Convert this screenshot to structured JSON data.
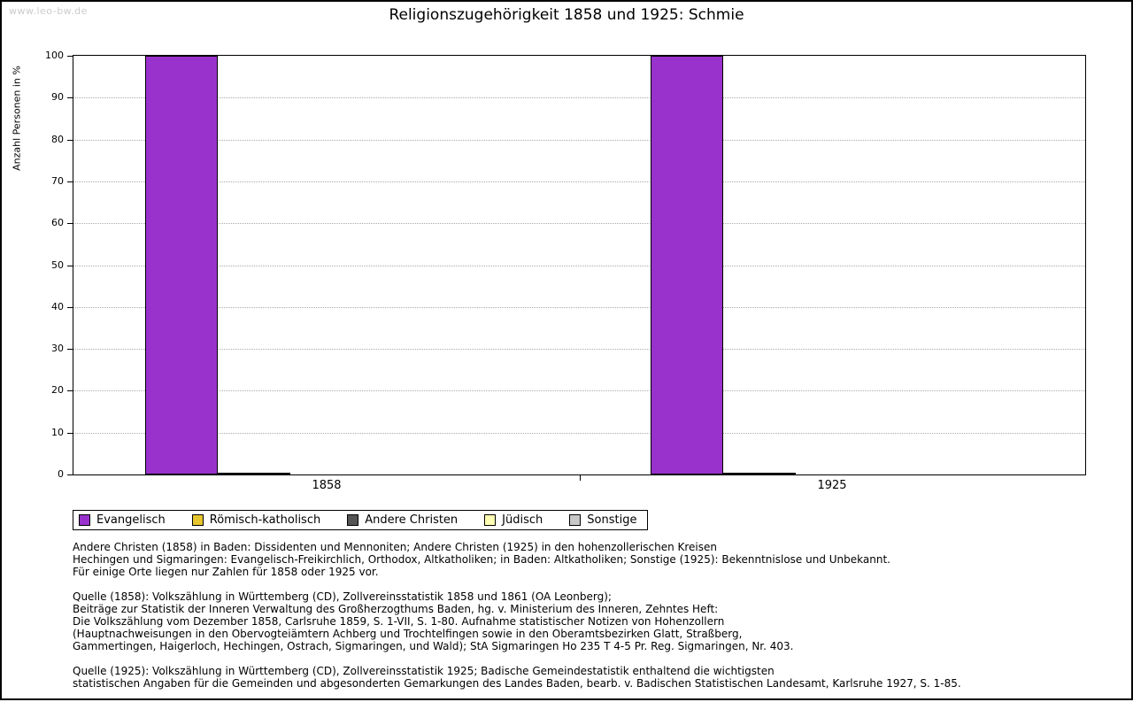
{
  "watermark": "www.leo-bw.de",
  "chart_data": {
    "type": "bar",
    "title": "Religionszugehörigkeit 1858 und 1925: Schmie",
    "ylabel": "Anzahl Personen in %",
    "xlabel": "",
    "categories": [
      "1858",
      "1925"
    ],
    "series": [
      {
        "name": "Evangelisch",
        "color": "#9932cc",
        "values": [
          100,
          100
        ]
      },
      {
        "name": "Römisch-katholisch",
        "color": "#e6c52e",
        "values": [
          0.3,
          0.3
        ]
      },
      {
        "name": "Andere Christen",
        "color": "#555555",
        "values": [
          0,
          0
        ]
      },
      {
        "name": "Jüdisch",
        "color": "#ffffb3",
        "values": [
          0,
          0
        ]
      },
      {
        "name": "Sonstige",
        "color": "#c8c8c8",
        "values": [
          0,
          0
        ]
      }
    ],
    "ylim": [
      0,
      100
    ],
    "ytick_step": 10,
    "grid": true,
    "legend_position": "bottom"
  },
  "footnotes": [
    {
      "lines": [
        "Andere Christen (1858) in Baden: Dissidenten und Mennoniten; Andere Christen (1925) in den hohenzollerischen Kreisen",
        "Hechingen und Sigmaringen: Evangelisch-Freikirchlich, Orthodox, Altkatholiken; in Baden: Altkatholiken; Sonstige (1925): Bekenntnislose und Unbekannt.",
        "Für einige Orte liegen nur Zahlen für 1858 oder 1925 vor."
      ]
    },
    {
      "lines": [
        "Quelle (1858): Volkszählung in Württemberg (CD), Zollvereinsstatistik 1858 und 1861 (OA Leonberg);",
        "Beiträge zur Statistik der Inneren Verwaltung des Großherzogthums Baden, hg. v. Ministerium des Inneren, Zehntes Heft:",
        "Die Volkszählung vom Dezember 1858, Carlsruhe 1859, S. 1-VII, S. 1-80. Aufnahme statistischer Notizen von Hohenzollern",
        "(Hauptnachweisungen in den Obervogteiämtern Achberg und Trochtelfingen sowie in den Oberamtsbezirken Glatt, Straßberg,",
        "Gammertingen, Haigerloch, Hechingen, Ostrach, Sigmaringen, und Wald); StA Sigmaringen Ho 235 T 4-5 Pr. Reg. Sigmaringen, Nr. 403."
      ]
    },
    {
      "lines": [
        "Quelle (1925): Volkszählung in Württemberg (CD), Zollvereinsstatistik 1925; Badische Gemeindestatistik enthaltend die wichtigsten",
        "statistischen Angaben für die Gemeinden und abgesonderten Gemarkungen des Landes Baden, bearb. v. Badischen Statistischen Landesamt, Karlsruhe 1927, S. 1-85."
      ]
    }
  ]
}
